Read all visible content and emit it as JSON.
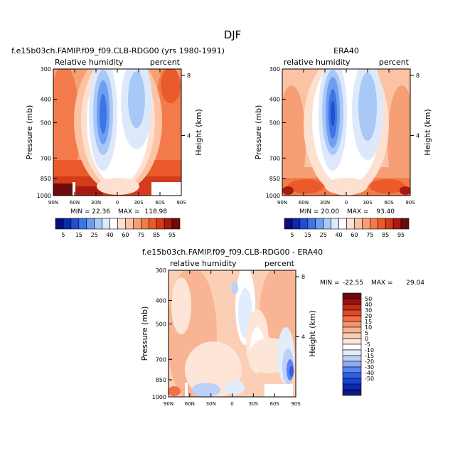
{
  "page": {
    "title": "DJF"
  },
  "colors": {
    "model_palette": [
      "#0a0a82",
      "#0c2aa8",
      "#1f4fd1",
      "#3f74e3",
      "#6e9ef0",
      "#a8c8f7",
      "#dde9fb",
      "#ffffff",
      "#fde0cf",
      "#fbc3a3",
      "#f79f74",
      "#f37b4b",
      "#ea5a2a",
      "#d33b1a",
      "#a81b10",
      "#6e0a0a"
    ],
    "diff_palette": [
      "#0a1a82",
      "#0c2ab0",
      "#1a42d6",
      "#2f5ee8",
      "#5a85ee",
      "#8cabf3",
      "#bdd0f8",
      "#e3ecfc",
      "#ffffff",
      "#fde6d8",
      "#fbcfb5",
      "#f8b493",
      "#f59570",
      "#ef7046",
      "#e04a22",
      "#c52a12",
      "#9a120c",
      "#6e0a0a"
    ]
  },
  "chart_data": [
    {
      "type": "heatmap",
      "title": "f.e15b03ch.FAMIP.f09_f09.CLB-RDG00 (yrs 1980-1991)",
      "left_label": "Relative humidity",
      "right_label": "percent",
      "ylabel": "Pressure (mb)",
      "ylabel_right": "Height (km)",
      "x_ticks": [
        "90N",
        "60N",
        "30N",
        "0",
        "30S",
        "60S",
        "90S"
      ],
      "y_ticks": [
        "300",
        "400",
        "500",
        "700",
        "850",
        "1000"
      ],
      "y_ticks_right": [
        "8",
        "4"
      ],
      "xlim": [
        90,
        -90
      ],
      "ylim": [
        1000,
        300
      ],
      "min_label": "MIN =",
      "min_value": "22.36",
      "max_label": "MAX =",
      "max_value": "118.98",
      "colorbar_labels": [
        "5",
        "15",
        "25",
        "40",
        "60",
        "75",
        "85",
        "95"
      ]
    },
    {
      "type": "heatmap",
      "title": "ERA40",
      "left_label": "relative humidity",
      "right_label": "percent",
      "ylabel": "Pressure (mb)",
      "ylabel_right": "Height (km)",
      "x_ticks": [
        "90N",
        "60N",
        "30N",
        "0",
        "30S",
        "60S",
        "90S"
      ],
      "y_ticks": [
        "300",
        "400",
        "500",
        "700",
        "850",
        "1000"
      ],
      "y_ticks_right": [
        "8",
        "4"
      ],
      "xlim": [
        90,
        -90
      ],
      "ylim": [
        1000,
        300
      ],
      "min_label": "MIN =",
      "min_value": "20.00",
      "max_label": "MAX =",
      "max_value": "93.40",
      "colorbar_labels": [
        "5",
        "15",
        "25",
        "40",
        "60",
        "75",
        "85",
        "95"
      ]
    },
    {
      "type": "heatmap",
      "title": "f.e15b03ch.FAMIP.f09_f09.CLB-RDG00 - ERA40",
      "left_label": "relative humidity",
      "right_label": "percent",
      "ylabel": "Pressure (mb)",
      "ylabel_right": "Height (km)",
      "x_ticks": [
        "90N",
        "60N",
        "30N",
        "0",
        "30S",
        "60S",
        "90S"
      ],
      "y_ticks": [
        "300",
        "400",
        "500",
        "700",
        "850",
        "1000"
      ],
      "y_ticks_right": [
        "8",
        "4"
      ],
      "xlim": [
        90,
        -90
      ],
      "ylim": [
        1000,
        300
      ],
      "min_label": "MIN =",
      "min_value": "-22.55",
      "max_label": "MAX =",
      "max_value": "29.04",
      "colorbar_labels": [
        "50",
        "40",
        "30",
        "20",
        "15",
        "10",
        "5",
        "0",
        "-5",
        "-10",
        "-15",
        "-20",
        "-30",
        "-40",
        "-50"
      ]
    }
  ]
}
